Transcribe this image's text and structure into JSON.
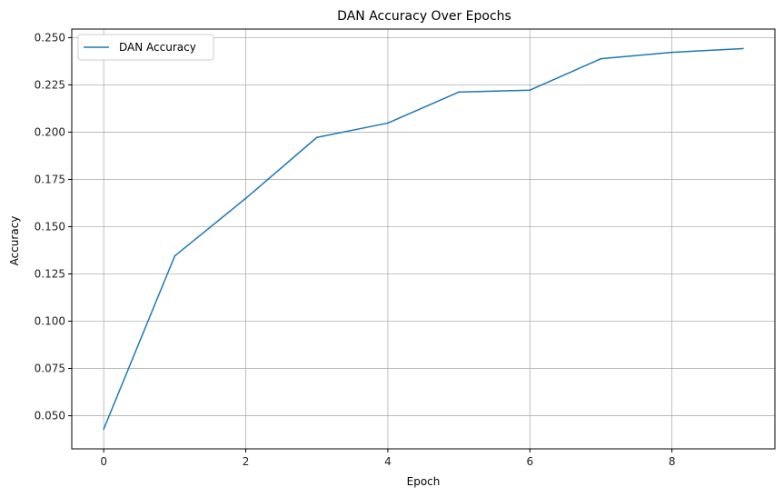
{
  "chart_data": {
    "type": "line",
    "title": "DAN Accuracy Over Epochs",
    "xlabel": "Epoch",
    "ylabel": "Accuracy",
    "xlim": [
      -0.45,
      9.45
    ],
    "ylim": [
      0.0325,
      0.2545
    ],
    "xticks": [
      0,
      2,
      4,
      6,
      8
    ],
    "xtick_labels": [
      "0",
      "2",
      "4",
      "6",
      "8"
    ],
    "yticks": [
      0.05,
      0.075,
      0.1,
      0.125,
      0.15,
      0.175,
      0.2,
      0.225,
      0.25
    ],
    "ytick_labels": [
      "0.050",
      "0.075",
      "0.100",
      "0.125",
      "0.150",
      "0.175",
      "0.200",
      "0.225",
      "0.250"
    ],
    "grid": true,
    "legend_position": "top-left",
    "series": [
      {
        "name": "DAN Accuracy",
        "color": "#1f77b4",
        "x": [
          0,
          1,
          2,
          3,
          4,
          5,
          6,
          7,
          8,
          9
        ],
        "y": [
          0.043,
          0.1345,
          0.165,
          0.1972,
          0.2048,
          0.2212,
          0.2222,
          0.2388,
          0.2422,
          0.2442
        ]
      }
    ]
  }
}
